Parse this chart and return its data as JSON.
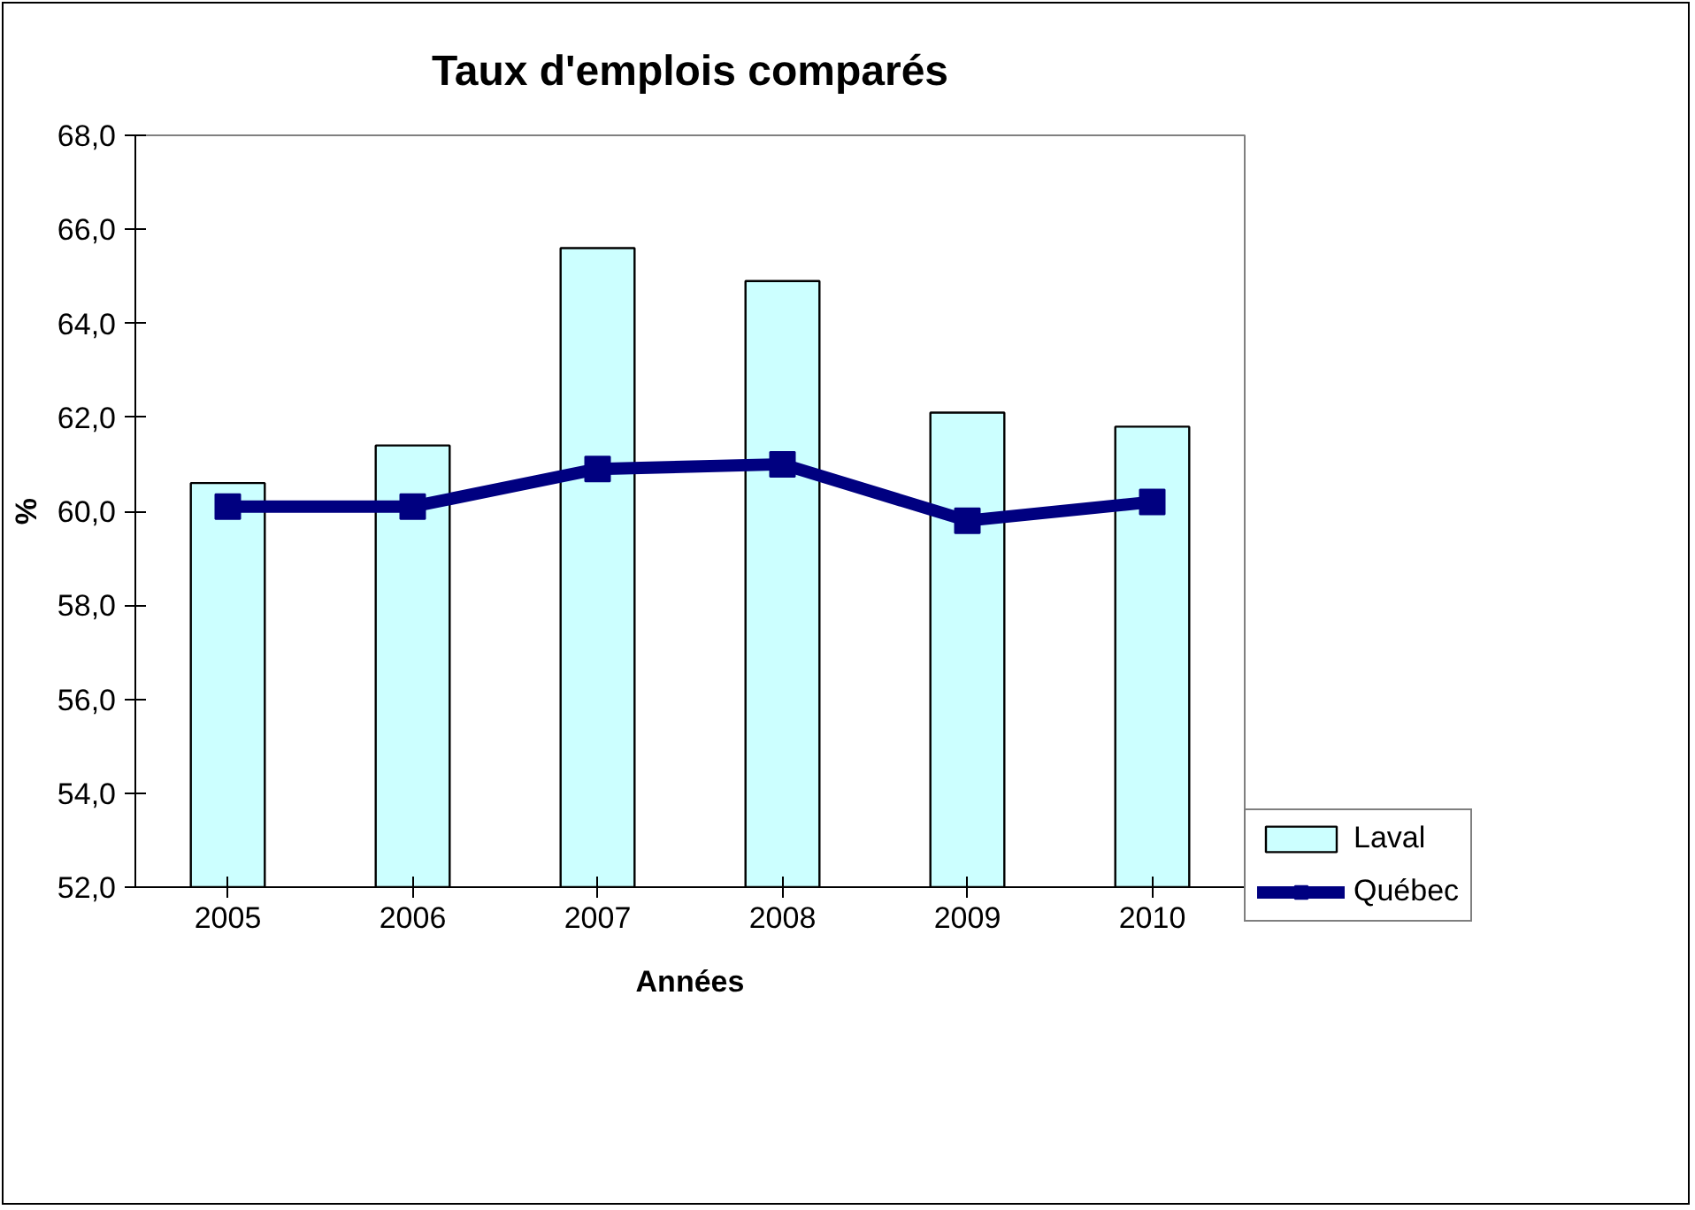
{
  "chart_data": {
    "type": "bar",
    "title": "Taux d'emplois comparés",
    "xlabel": "Années",
    "ylabel": "%",
    "categories": [
      "2005",
      "2006",
      "2007",
      "2008",
      "2009",
      "2010"
    ],
    "series": [
      {
        "name": "Laval",
        "color": "#ccffff",
        "values": [
          60.6,
          61.4,
          65.6,
          64.9,
          62.1,
          61.8
        ]
      },
      {
        "name": "Québec",
        "type": "line",
        "color": "#000080",
        "values": [
          60.1,
          60.1,
          60.9,
          61.0,
          59.8,
          60.2
        ]
      }
    ],
    "ylim": [
      52,
      68
    ],
    "yticks": [
      {
        "value": 52,
        "label": "52,0"
      },
      {
        "value": 54,
        "label": "54,0"
      },
      {
        "value": 56,
        "label": "56,0"
      },
      {
        "value": 58,
        "label": "58,0"
      },
      {
        "value": 60,
        "label": "60,0"
      },
      {
        "value": 62,
        "label": "62,0"
      },
      {
        "value": 64,
        "label": "64,0"
      },
      {
        "value": 66,
        "label": "66,0"
      },
      {
        "value": 68,
        "label": "68,0"
      }
    ],
    "grid": false,
    "legend": "right",
    "marker": "square",
    "line_style": "solid"
  }
}
